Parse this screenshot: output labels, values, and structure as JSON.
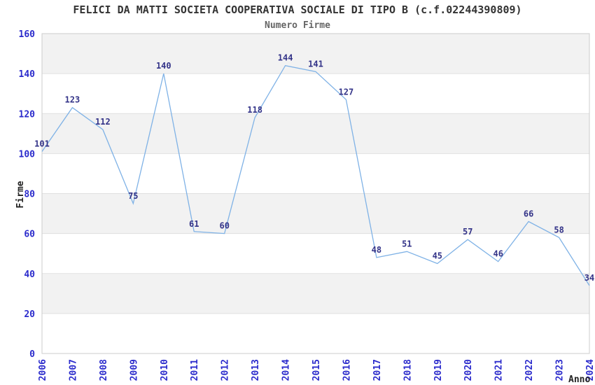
{
  "chart_data": {
    "type": "line",
    "title": "FELICI DA MATTI SOCIETA COOPERATIVA SOCIALE DI TIPO B (c.f.02244390809)",
    "subtitle": "Numero Firme",
    "xlabel": "Anno",
    "ylabel": "Firme",
    "categories": [
      "2006",
      "2007",
      "2008",
      "2009",
      "2010",
      "2011",
      "2012",
      "2013",
      "2014",
      "2015",
      "2016",
      "2017",
      "2018",
      "2019",
      "2020",
      "2021",
      "2022",
      "2023",
      "2024"
    ],
    "values": [
      101,
      123,
      112,
      75,
      140,
      61,
      60,
      118,
      144,
      141,
      127,
      48,
      51,
      45,
      57,
      46,
      66,
      58,
      34
    ],
    "ylim": [
      0,
      160
    ],
    "yticks": [
      0,
      20,
      40,
      60,
      80,
      100,
      120,
      140,
      160
    ],
    "ytick_step": 20,
    "grid": "horizontal-bands",
    "legend": "none",
    "show_data_labels": true,
    "colors": {
      "line": "#7fb2e6",
      "tick_label": "#2b2bcc",
      "data_label": "#333388",
      "title": "#333333",
      "subtitle": "#666666",
      "axis_title": "#222222",
      "band": "#f2f2f2",
      "gridline": "#e0e0e0",
      "border": "#cccccc",
      "background": "#ffffff"
    }
  }
}
